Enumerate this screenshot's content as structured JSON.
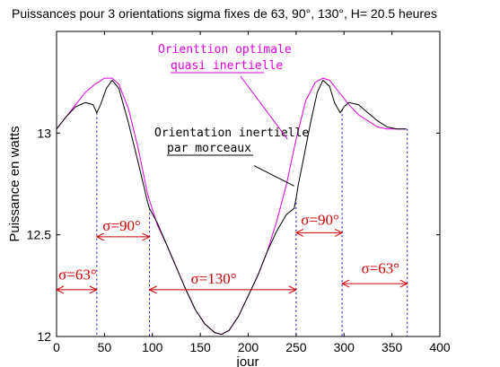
{
  "chart_data": {
    "type": "line",
    "title": "Puissances pour 3 orientations sigma fixes de 63,  90°,  130°, H= 20.5 heures",
    "xlabel": "jour",
    "ylabel": "Puissance en watts",
    "xlim": [
      0,
      400
    ],
    "ylim": [
      12,
      13.5
    ],
    "xticks": [
      0,
      50,
      100,
      150,
      200,
      250,
      300,
      350,
      400
    ],
    "yticks": [
      12,
      12.5,
      13
    ],
    "grid": false,
    "colors": {
      "optimal": "#e000e0",
      "piecewise": "#000000",
      "sigma": "#d00000",
      "boundary": "#0000cc"
    },
    "series": [
      {
        "label": "Orienttion optimale quasi inertielle",
        "x": [
          0,
          10,
          20,
          30,
          40,
          50,
          58,
          65,
          75,
          85,
          95,
          105,
          115,
          125,
          135,
          145,
          155,
          165,
          172,
          180,
          190,
          200,
          210,
          220,
          230,
          240,
          250,
          260,
          270,
          278,
          285,
          295,
          305,
          315,
          325,
          335,
          345,
          355,
          365
        ],
        "y": [
          13.02,
          13.08,
          13.14,
          13.2,
          13.24,
          13.27,
          13.27,
          13.24,
          13.12,
          12.93,
          12.7,
          12.55,
          12.45,
          12.34,
          12.23,
          12.13,
          12.06,
          12.02,
          12.01,
          12.03,
          12.1,
          12.2,
          12.3,
          12.42,
          12.57,
          12.75,
          12.97,
          13.16,
          13.25,
          13.27,
          13.26,
          13.2,
          13.14,
          13.09,
          13.06,
          13.03,
          13.02,
          13.02,
          13.02
        ]
      },
      {
        "label": "Orientation inertielle par morceaux",
        "x": [
          0,
          10,
          20,
          30,
          38,
          42,
          46,
          52,
          58,
          65,
          75,
          85,
          92,
          95,
          97,
          105,
          115,
          125,
          135,
          145,
          155,
          165,
          172,
          180,
          190,
          200,
          210,
          220,
          230,
          240,
          248,
          250,
          252,
          258,
          265,
          272,
          278,
          285,
          290,
          296,
          300,
          305,
          315,
          325,
          335,
          345,
          355,
          365
        ],
        "y": [
          13.02,
          13.08,
          13.13,
          13.15,
          13.14,
          13.1,
          13.14,
          13.22,
          13.26,
          13.22,
          13.05,
          12.86,
          12.72,
          12.66,
          12.63,
          12.56,
          12.45,
          12.34,
          12.23,
          12.13,
          12.06,
          12.02,
          12.01,
          12.03,
          12.1,
          12.2,
          12.3,
          12.42,
          12.52,
          12.6,
          12.63,
          12.68,
          12.74,
          12.88,
          13.05,
          13.2,
          13.26,
          13.23,
          13.15,
          13.1,
          13.13,
          13.15,
          13.14,
          13.1,
          13.06,
          13.03,
          13.02,
          13.02
        ]
      }
    ],
    "boundaries": [
      42,
      97,
      250,
      298,
      366
    ],
    "annotations": {
      "optimal_line1": "Orienttion optimale",
      "optimal_line2": "quasi inertielle",
      "piecewise_line1": "Orientation inertielle",
      "piecewise_line2": "par morceaux",
      "optimal_pointer": {
        "from": [
          192,
          13.28
        ],
        "to": [
          241,
          12.97
        ]
      },
      "piecewise_pointer": {
        "from": [
          206,
          12.84
        ],
        "to": [
          248,
          12.74
        ]
      }
    },
    "sigma_regions": [
      {
        "label": "σ=63°",
        "x_start": 0,
        "x_end": 42,
        "y": 12.23,
        "text_x": 2,
        "text_y": 12.28
      },
      {
        "label": "σ=90°",
        "x_start": 42,
        "x_end": 97,
        "y": 12.49,
        "text_x": 48,
        "text_y": 12.52
      },
      {
        "label": "σ=130°",
        "x_start": 97,
        "x_end": 250,
        "y": 12.23,
        "text_x": 140,
        "text_y": 12.26
      },
      {
        "label": "σ=90°",
        "x_start": 250,
        "x_end": 298,
        "y": 12.51,
        "text_x": 255,
        "text_y": 12.55
      },
      {
        "label": "σ=63°",
        "x_start": 298,
        "x_end": 366,
        "y": 12.26,
        "text_x": 318,
        "text_y": 12.31
      }
    ]
  }
}
